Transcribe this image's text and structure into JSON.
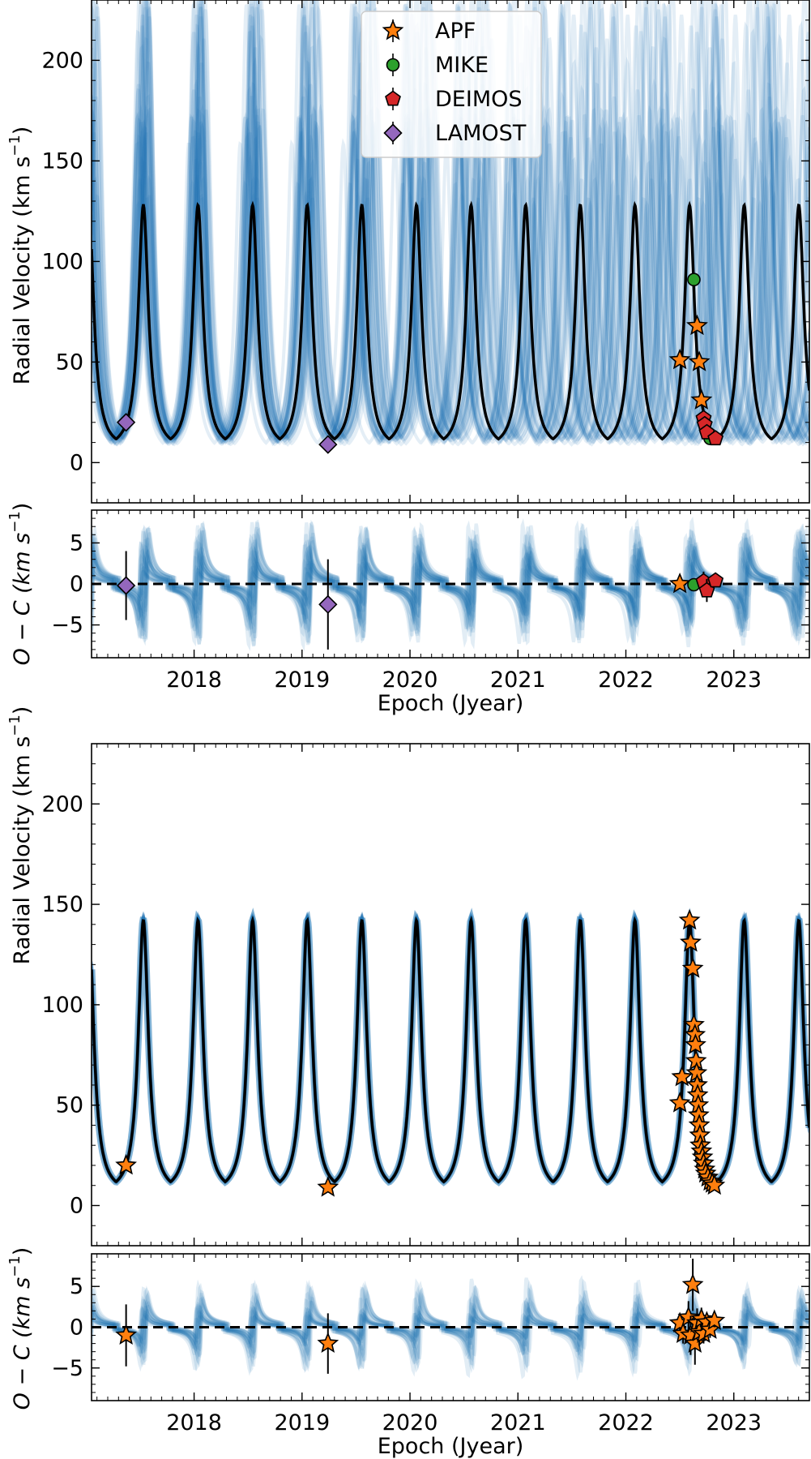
{
  "chart_data": [
    {
      "type": "line",
      "panel": "top-rv",
      "ylabel": "Radial Velocity (km s^-1)",
      "ylim": [
        -20,
        230
      ],
      "xlim": [
        2017.05,
        2023.7
      ],
      "yticks": [
        0,
        50,
        100,
        150,
        200
      ],
      "model": {
        "name": "best-fit orbit",
        "period_yr": 0.506,
        "first_peak": 2017.53,
        "min_rv": 11,
        "max_rv": 128
      },
      "legend": {
        "placement": "top-center",
        "entries": [
          {
            "label": "APF",
            "marker": "star",
            "color": "#ff7f0e"
          },
          {
            "label": "MIKE",
            "marker": "circle",
            "color": "#2ca02c"
          },
          {
            "label": "DEIMOS",
            "marker": "pentagon",
            "color": "#d62728"
          },
          {
            "label": "LAMOST",
            "marker": "diamond",
            "color": "#9467bd"
          }
        ]
      },
      "series": [
        {
          "name": "LAMOST",
          "marker": "diamond",
          "color": "#9467bd",
          "x": [
            2017.37,
            2019.24
          ],
          "y": [
            20,
            9
          ]
        },
        {
          "name": "APF",
          "marker": "star",
          "color": "#ff7f0e",
          "x": [
            2022.5,
            2022.66,
            2022.68,
            2022.7
          ],
          "y": [
            51,
            68,
            50,
            31
          ]
        },
        {
          "name": "MIKE",
          "marker": "circle",
          "color": "#2ca02c",
          "x": [
            2022.63,
            2022.78
          ],
          "y": [
            91,
            12
          ]
        },
        {
          "name": "DEIMOS",
          "marker": "pentagon",
          "color": "#d62728",
          "x": [
            2022.72,
            2022.73,
            2022.75,
            2022.83
          ],
          "y": [
            22,
            19,
            15,
            12
          ]
        }
      ]
    },
    {
      "type": "scatter",
      "panel": "top-residuals",
      "ylabel": "O - C (km s^-1)",
      "xlabel": "Epoch (Jyear)",
      "ylim": [
        -9,
        9
      ],
      "yticks": [
        -5,
        0,
        5
      ],
      "xticks": [
        2018,
        2019,
        2020,
        2021,
        2022,
        2023
      ],
      "series": [
        {
          "name": "LAMOST",
          "marker": "diamond",
          "color": "#9467bd",
          "x": [
            2017.37,
            2019.24
          ],
          "y": [
            -0.2,
            -2.5
          ],
          "yerr": [
            4.2,
            5.5
          ]
        },
        {
          "name": "APF",
          "marker": "star",
          "color": "#ff7f0e",
          "x": [
            2022.5
          ],
          "y": [
            0.0
          ],
          "yerr": [
            0.4
          ]
        },
        {
          "name": "MIKE",
          "marker": "circle",
          "color": "#2ca02c",
          "x": [
            2022.63
          ],
          "y": [
            -0.1
          ],
          "yerr": [
            0.4
          ]
        },
        {
          "name": "DEIMOS",
          "marker": "pentagon",
          "color": "#d62728",
          "x": [
            2022.72,
            2022.75,
            2022.83
          ],
          "y": [
            0.3,
            -0.8,
            0.4
          ],
          "yerr": [
            1.2,
            1.4,
            0.6
          ]
        }
      ]
    },
    {
      "type": "line",
      "panel": "bottom-rv",
      "ylabel": "Radial Velocity (km s^-1)",
      "ylim": [
        -20,
        230
      ],
      "xlim": [
        2017.05,
        2023.7
      ],
      "yticks": [
        0,
        50,
        100,
        150,
        200
      ],
      "model": {
        "name": "best-fit orbit",
        "period_yr": 0.506,
        "first_peak": 2017.53,
        "min_rv": 11,
        "max_rv": 142
      },
      "series": [
        {
          "name": "APF",
          "marker": "star",
          "color": "#ff7f0e",
          "x": [
            2017.37,
            2019.24,
            2022.5,
            2022.52,
            2022.59,
            2022.6,
            2022.62,
            2022.63,
            2022.64,
            2022.645,
            2022.65,
            2022.655,
            2022.66,
            2022.665,
            2022.67,
            2022.675,
            2022.68,
            2022.685,
            2022.69,
            2022.7,
            2022.71,
            2022.72,
            2022.73,
            2022.74,
            2022.76,
            2022.78,
            2022.8,
            2022.82
          ],
          "y": [
            20,
            9,
            51,
            64,
            142,
            131,
            118,
            90,
            85,
            80,
            72,
            66,
            60,
            55,
            50,
            45,
            40,
            35,
            30,
            27,
            24,
            21,
            18,
            16,
            14,
            12,
            11,
            10
          ]
        }
      ]
    },
    {
      "type": "scatter",
      "panel": "bottom-residuals",
      "ylabel": "O - C (km s^-1)",
      "xlabel": "Epoch (Jyear)",
      "ylim": [
        -9,
        9
      ],
      "yticks": [
        -5,
        0,
        5
      ],
      "xticks": [
        2018,
        2019,
        2020,
        2021,
        2022,
        2023
      ],
      "series": [
        {
          "name": "APF",
          "marker": "star",
          "color": "#ff7f0e",
          "x": [
            2017.37,
            2019.24,
            2022.5,
            2022.53,
            2022.58,
            2022.6,
            2022.62,
            2022.64,
            2022.66,
            2022.68,
            2022.7,
            2022.72,
            2022.75,
            2022.78,
            2022.82
          ],
          "y": [
            -1.0,
            -2.0,
            0.5,
            -0.8,
            1.2,
            -1.0,
            5.2,
            -2.0,
            0.5,
            -0.6,
            1.0,
            -0.8,
            0.6,
            -0.3,
            0.8
          ],
          "yerr": [
            3.8,
            3.7,
            0.8,
            1.2,
            2.0,
            2.4,
            3.2,
            2.6,
            1.8,
            1.6,
            1.4,
            1.2,
            1.0,
            1.0,
            0.8
          ]
        }
      ]
    }
  ],
  "labels": {
    "rv_ylabel_main": "Radial Velocity (km s",
    "rv_ylabel_sup": "−1",
    "rv_ylabel_end": ")",
    "res_ylabel_main": "O − C (km s",
    "res_ylabel_sup": "−1",
    "res_ylabel_end": ")",
    "xlabel": "Epoch (Jyear)"
  },
  "colors": {
    "model": "#000000",
    "posterior": "#1f77b4",
    "zero_line": "#000000"
  }
}
